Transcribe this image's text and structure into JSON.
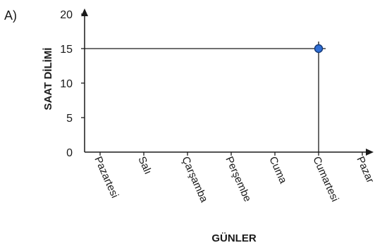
{
  "chart_data": {
    "type": "scatter",
    "panel_label": "A)",
    "xlabel": "GÜNLER",
    "ylabel": "SAAT DİLİMİ",
    "categories": [
      "Pazartesi",
      "Salı",
      "Çarşamba",
      "Perşembe",
      "Cuma",
      "Cumartesi",
      "Pazar"
    ],
    "yticks": [
      0,
      5,
      10,
      15,
      20
    ],
    "ylim": [
      0,
      20
    ],
    "points": [
      {
        "x": "Cumartesi",
        "y": 15
      }
    ],
    "guide_lines": true,
    "grid": false,
    "colors": {
      "axis": "#1a1a1a",
      "point_fill": "#2f6fd6",
      "point_stroke": "#163a78"
    }
  }
}
